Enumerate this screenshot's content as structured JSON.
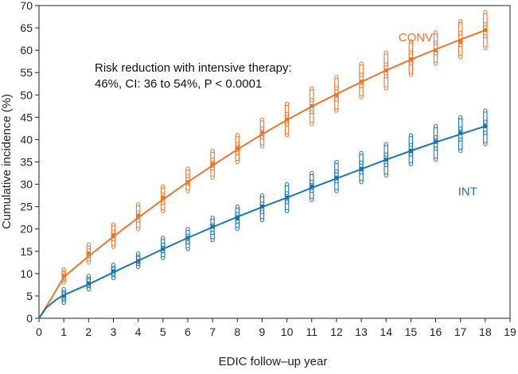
{
  "chart_data": {
    "type": "line",
    "xlabel": "EDIC follow–up year",
    "ylabel": "Cumulative incidence (%)",
    "xlim": [
      0,
      19
    ],
    "ylim": [
      0,
      70
    ],
    "xticks": [
      0,
      1,
      2,
      3,
      4,
      5,
      6,
      7,
      8,
      9,
      10,
      11,
      12,
      13,
      14,
      15,
      16,
      17,
      18,
      19
    ],
    "yticks": [
      0,
      5,
      10,
      15,
      20,
      25,
      30,
      35,
      40,
      45,
      50,
      55,
      60,
      65,
      70
    ],
    "annotation": {
      "line1": "Risk reduction with intensive therapy:",
      "line2": "46%, CI: 36 to 54%, P < 0.0001"
    },
    "series": [
      {
        "name": "CONV",
        "color": "#e8772e",
        "x": [
          1,
          2,
          3,
          4,
          5,
          6,
          7,
          8,
          9,
          10,
          11,
          12,
          13,
          14,
          15,
          16,
          17,
          18
        ],
        "values": [
          9.5,
          14.5,
          18.5,
          23,
          27,
          30.5,
          34.5,
          38,
          41.5,
          44.5,
          47.5,
          50,
          53,
          55.5,
          58,
          60,
          62,
          64.5
        ],
        "ranges": [
          [
            8,
            11
          ],
          [
            12.5,
            16.5
          ],
          [
            16,
            21
          ],
          [
            20,
            25.5
          ],
          [
            24,
            29.5
          ],
          [
            28.5,
            33.5
          ],
          [
            31.5,
            37.5
          ],
          [
            35,
            41
          ],
          [
            38.5,
            44.5
          ],
          [
            41,
            48
          ],
          [
            43.5,
            51.5
          ],
          [
            46.5,
            54
          ],
          [
            49.5,
            57
          ],
          [
            51.5,
            59.5
          ],
          [
            54.5,
            62
          ],
          [
            57,
            64
          ],
          [
            58.5,
            66.5
          ],
          [
            60.5,
            68.5
          ]
        ],
        "curve": [
          [
            0,
            0
          ],
          [
            0.5,
            4.5
          ],
          [
            1,
            9.2
          ],
          [
            2,
            13.9
          ],
          [
            3,
            18.3
          ],
          [
            4,
            22.5
          ],
          [
            5,
            26.6
          ],
          [
            6,
            30.5
          ],
          [
            7,
            34.2
          ],
          [
            8,
            37.8
          ],
          [
            9,
            41.2
          ],
          [
            10,
            44.4
          ],
          [
            11,
            47.4
          ],
          [
            12,
            50.2
          ],
          [
            13,
            52.9
          ],
          [
            14,
            55.5
          ],
          [
            15,
            57.9
          ],
          [
            16,
            60.2
          ],
          [
            17,
            62.4
          ],
          [
            18,
            64.5
          ]
        ],
        "label_x": 14.5,
        "label_y": 62
      },
      {
        "name": "INT",
        "color": "#1a75b1",
        "x": [
          1,
          2,
          3,
          4,
          5,
          6,
          7,
          8,
          9,
          10,
          11,
          12,
          13,
          14,
          15,
          16,
          17,
          18
        ],
        "values": [
          5,
          7.8,
          10.5,
          12.8,
          15.5,
          18,
          20.5,
          22.5,
          25,
          27,
          29.5,
          31.5,
          33.5,
          35.5,
          37.5,
          39.5,
          41.5,
          43
        ],
        "ranges": [
          [
            3.5,
            6.5
          ],
          [
            6.5,
            9.5
          ],
          [
            9,
            12
          ],
          [
            11.5,
            14.5
          ],
          [
            13.5,
            18
          ],
          [
            15.5,
            20
          ],
          [
            17.5,
            22.5
          ],
          [
            20,
            25
          ],
          [
            22,
            27.5
          ],
          [
            24,
            30
          ],
          [
            26.5,
            32.5
          ],
          [
            28.5,
            35
          ],
          [
            30.5,
            37
          ],
          [
            32,
            39
          ],
          [
            34.5,
            41
          ],
          [
            35.5,
            43
          ],
          [
            37.5,
            45
          ],
          [
            39,
            46.5
          ]
        ],
        "curve": [
          [
            0,
            0
          ],
          [
            0.3,
            2.4
          ],
          [
            0.7,
            4.2
          ],
          [
            1,
            5.2
          ],
          [
            1.5,
            6.4
          ],
          [
            2,
            7.6
          ],
          [
            3,
            10.3
          ],
          [
            4,
            12.9
          ],
          [
            5,
            15.5
          ],
          [
            6,
            18
          ],
          [
            7,
            20.4
          ],
          [
            8,
            22.7
          ],
          [
            9,
            24.9
          ],
          [
            10,
            27
          ],
          [
            11,
            29.2
          ],
          [
            12,
            31.3
          ],
          [
            13,
            33.4
          ],
          [
            14,
            35.5
          ],
          [
            15,
            37.5
          ],
          [
            16,
            39.4
          ],
          [
            17,
            41.2
          ],
          [
            18,
            43
          ]
        ],
        "label_x": 16.9,
        "label_y": 27.5
      }
    ]
  }
}
